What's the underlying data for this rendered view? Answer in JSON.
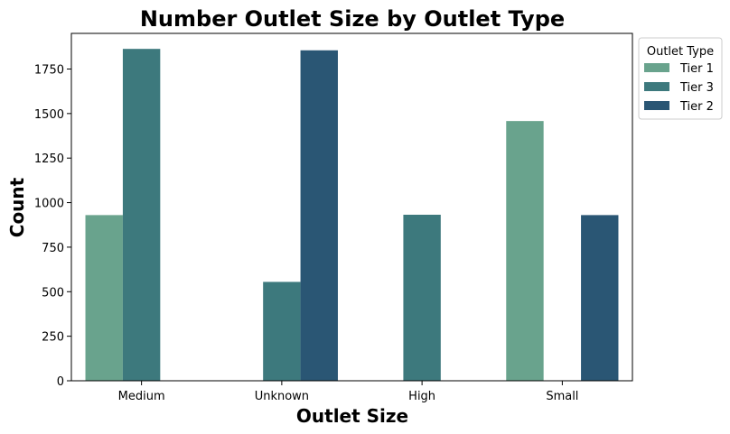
{
  "chart_data": {
    "type": "bar",
    "title": "Number Outlet Size by Outlet Type",
    "xlabel": "Outlet Size",
    "ylabel": "Count",
    "categories": [
      "Medium",
      "Unknown",
      "High",
      "Small"
    ],
    "series": [
      {
        "name": "Tier 1",
        "color": "#69a38d",
        "values": [
          930,
          null,
          null,
          1458
        ]
      },
      {
        "name": "Tier 3",
        "color": "#3d797d",
        "values": [
          1863,
          555,
          932,
          null
        ]
      },
      {
        "name": "Tier 2",
        "color": "#2a5674",
        "values": [
          null,
          1855,
          null,
          930
        ]
      }
    ],
    "ylim": [
      0,
      1950
    ],
    "yticks": [
      0,
      250,
      500,
      750,
      1000,
      1250,
      1500,
      1750
    ],
    "legend": {
      "title": "Outlet Type",
      "position": "upper-right-outside"
    },
    "grid": false
  }
}
